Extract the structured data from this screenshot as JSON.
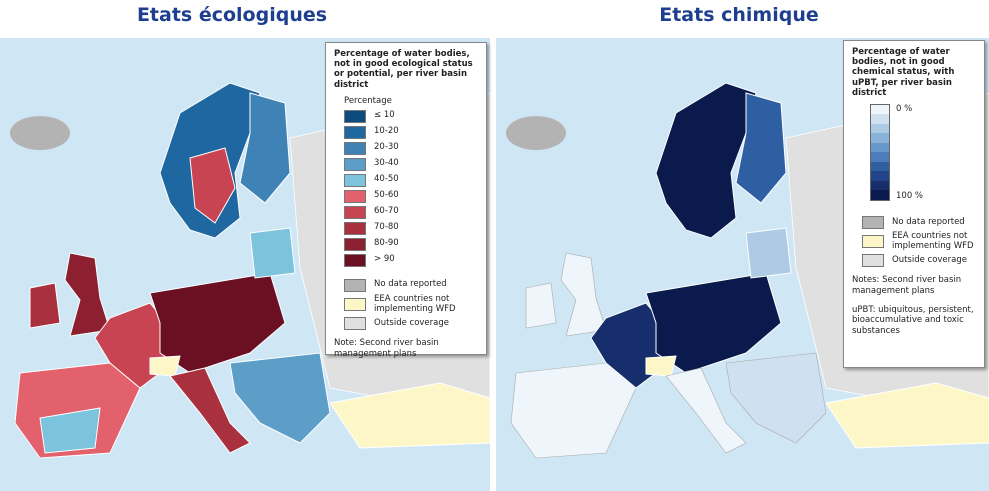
{
  "maps": [
    {
      "title": "Etats écologiques",
      "legend": {
        "title": "Percentage of water bodies, not in good ecological status or potential, per river basin district",
        "subtitle": "Percentage",
        "classes": [
          {
            "label": "≤ 10",
            "color": "#0d4a7e"
          },
          {
            "label": "10-20",
            "color": "#1f67a0"
          },
          {
            "label": "20-30",
            "color": "#3f82b6"
          },
          {
            "label": "30-40",
            "color": "#5c9ec8"
          },
          {
            "label": "40-50",
            "color": "#7cc3dd"
          },
          {
            "label": "50-60",
            "color": "#e3606d"
          },
          {
            "label": "60-70",
            "color": "#c94452"
          },
          {
            "label": "70-80",
            "color": "#a9303f"
          },
          {
            "label": "80-90",
            "color": "#8c1f30"
          },
          {
            "label": "> 90",
            "color": "#6b0f22"
          }
        ],
        "other": [
          {
            "label": "No data reported",
            "color": "#b3b3b3"
          },
          {
            "label": "EEA countries not implementing WFD",
            "color": "#fdf7c8"
          },
          {
            "label": "Outside coverage",
            "color": "#e0e0e0"
          }
        ],
        "notes": [
          "Note: Second river basin management plans"
        ]
      }
    },
    {
      "title": "Etats chimique",
      "legend": {
        "title": "Percentage of water bodies, not in good chemical status, with uPBT, per river basin district",
        "scale_labels": [
          "0 %",
          "100 %"
        ],
        "scale_colors": [
          "#eef5fb",
          "#cfe0f1",
          "#aecbe6",
          "#8bb3da",
          "#6898cb",
          "#4a7dba",
          "#2f5fa3",
          "#21448a",
          "#172e6c",
          "#0b1a4d"
        ],
        "other": [
          {
            "label": "No data reported",
            "color": "#b3b3b3"
          },
          {
            "label": "EEA countries not implementing WFD",
            "color": "#fdf7c8"
          },
          {
            "label": "Outside coverage",
            "color": "#e0e0e0"
          }
        ],
        "notes": [
          "Notes: Second river basin management plans",
          "uPBT: ubiquitous, persistent, bioaccumulative and toxic substances"
        ]
      }
    }
  ]
}
